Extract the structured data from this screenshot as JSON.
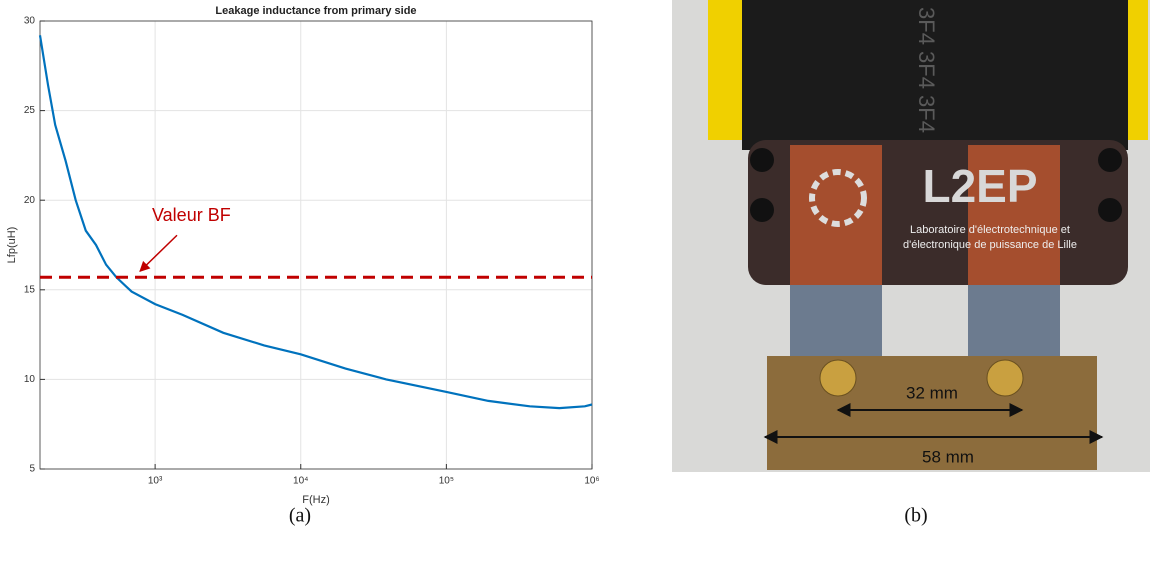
{
  "chart_data": {
    "type": "line",
    "title": "Leakage inductance from primary side",
    "x_label": "F(Hz)",
    "y_label": "Lfp(uH)",
    "log_x": true,
    "grid": true,
    "xlim": [
      162,
      1000000
    ],
    "ylim": [
      5,
      30
    ],
    "xticks": [
      {
        "value": 1000,
        "label": "10³"
      },
      {
        "value": 10000,
        "label": "10⁴"
      },
      {
        "value": 100000,
        "label": "10⁵"
      },
      {
        "value": 1000000,
        "label": "10⁶"
      }
    ],
    "yticks": [
      5,
      10,
      15,
      20,
      25,
      30
    ],
    "x": [
      162,
      184,
      206,
      243,
      285,
      334,
      393,
      461,
      542,
      690,
      1000,
      1545,
      2940,
      5600,
      10000,
      20300,
      38600,
      100000,
      194000,
      374000,
      597000,
      893000,
      1000000
    ],
    "series": [
      {
        "name": "Lfp",
        "color": "#0072bd",
        "values": [
          29.2,
          26.4,
          24.2,
          22.2,
          20.0,
          18.3,
          17.5,
          16.4,
          15.7,
          14.9,
          14.2,
          13.6,
          12.6,
          11.9,
          11.4,
          10.6,
          10.0,
          9.3,
          8.8,
          8.5,
          8.4,
          8.5,
          8.6
        ]
      }
    ],
    "reference_line": {
      "value": 15.7,
      "color": "#c00000"
    },
    "annotation": "Valeur BF"
  },
  "photo": {
    "core_marking": "3F4 3F4 3F4",
    "logo": "L2EP",
    "logo_lines": [
      "Laboratoire d'électrotechnique et",
      "d'électronique de puissance de Lille"
    ],
    "dimensions": [
      "32 mm",
      "58 mm"
    ]
  },
  "captions": [
    "(a)",
    "(b)"
  ]
}
